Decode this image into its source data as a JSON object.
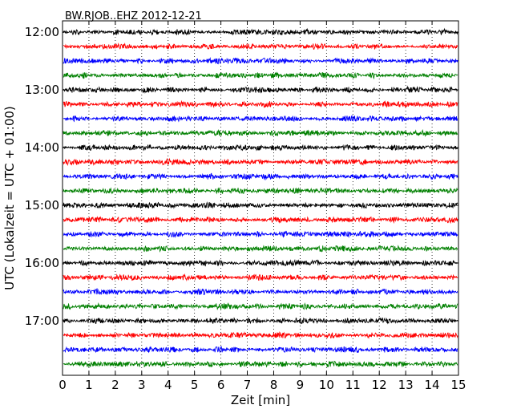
{
  "chart_data": {
    "type": "line",
    "title": "BW.RJOB..EHZ 2012-12-21",
    "xlabel": "Zeit  [min]",
    "ylabel": "UTC (Lokalzeit = UTC + 01:00)",
    "xlim": [
      0,
      15
    ],
    "x_ticks": [
      "0",
      "1",
      "2",
      "3",
      "4",
      "5",
      "6",
      "7",
      "8",
      "9",
      "10",
      "11",
      "12",
      "13",
      "14",
      "15"
    ],
    "y_ticks": [
      "12:00",
      "13:00",
      "14:00",
      "15:00",
      "16:00",
      "17:00"
    ],
    "grid": "vertical-dotted",
    "row_minutes": 15,
    "start_time": "12:00",
    "colors_cycle": [
      "#000000",
      "#ff0000",
      "#0000ff",
      "#008000"
    ],
    "series": [
      {
        "start": "12:00",
        "color": "#000000"
      },
      {
        "start": "12:15",
        "color": "#ff0000"
      },
      {
        "start": "12:30",
        "color": "#0000ff"
      },
      {
        "start": "12:45",
        "color": "#008000"
      },
      {
        "start": "13:00",
        "color": "#000000"
      },
      {
        "start": "13:15",
        "color": "#ff0000"
      },
      {
        "start": "13:30",
        "color": "#0000ff"
      },
      {
        "start": "13:45",
        "color": "#008000"
      },
      {
        "start": "14:00",
        "color": "#000000"
      },
      {
        "start": "14:15",
        "color": "#ff0000"
      },
      {
        "start": "14:30",
        "color": "#0000ff"
      },
      {
        "start": "14:45",
        "color": "#008000"
      },
      {
        "start": "15:00",
        "color": "#000000"
      },
      {
        "start": "15:15",
        "color": "#ff0000"
      },
      {
        "start": "15:30",
        "color": "#0000ff"
      },
      {
        "start": "15:45",
        "color": "#008000"
      },
      {
        "start": "16:00",
        "color": "#000000"
      },
      {
        "start": "16:15",
        "color": "#ff0000"
      },
      {
        "start": "16:30",
        "color": "#0000ff"
      },
      {
        "start": "16:45",
        "color": "#008000"
      },
      {
        "start": "17:00",
        "color": "#000000"
      },
      {
        "start": "17:15",
        "color": "#ff0000"
      },
      {
        "start": "17:30",
        "color": "#0000ff"
      },
      {
        "start": "17:45",
        "color": "#008000"
      }
    ]
  }
}
